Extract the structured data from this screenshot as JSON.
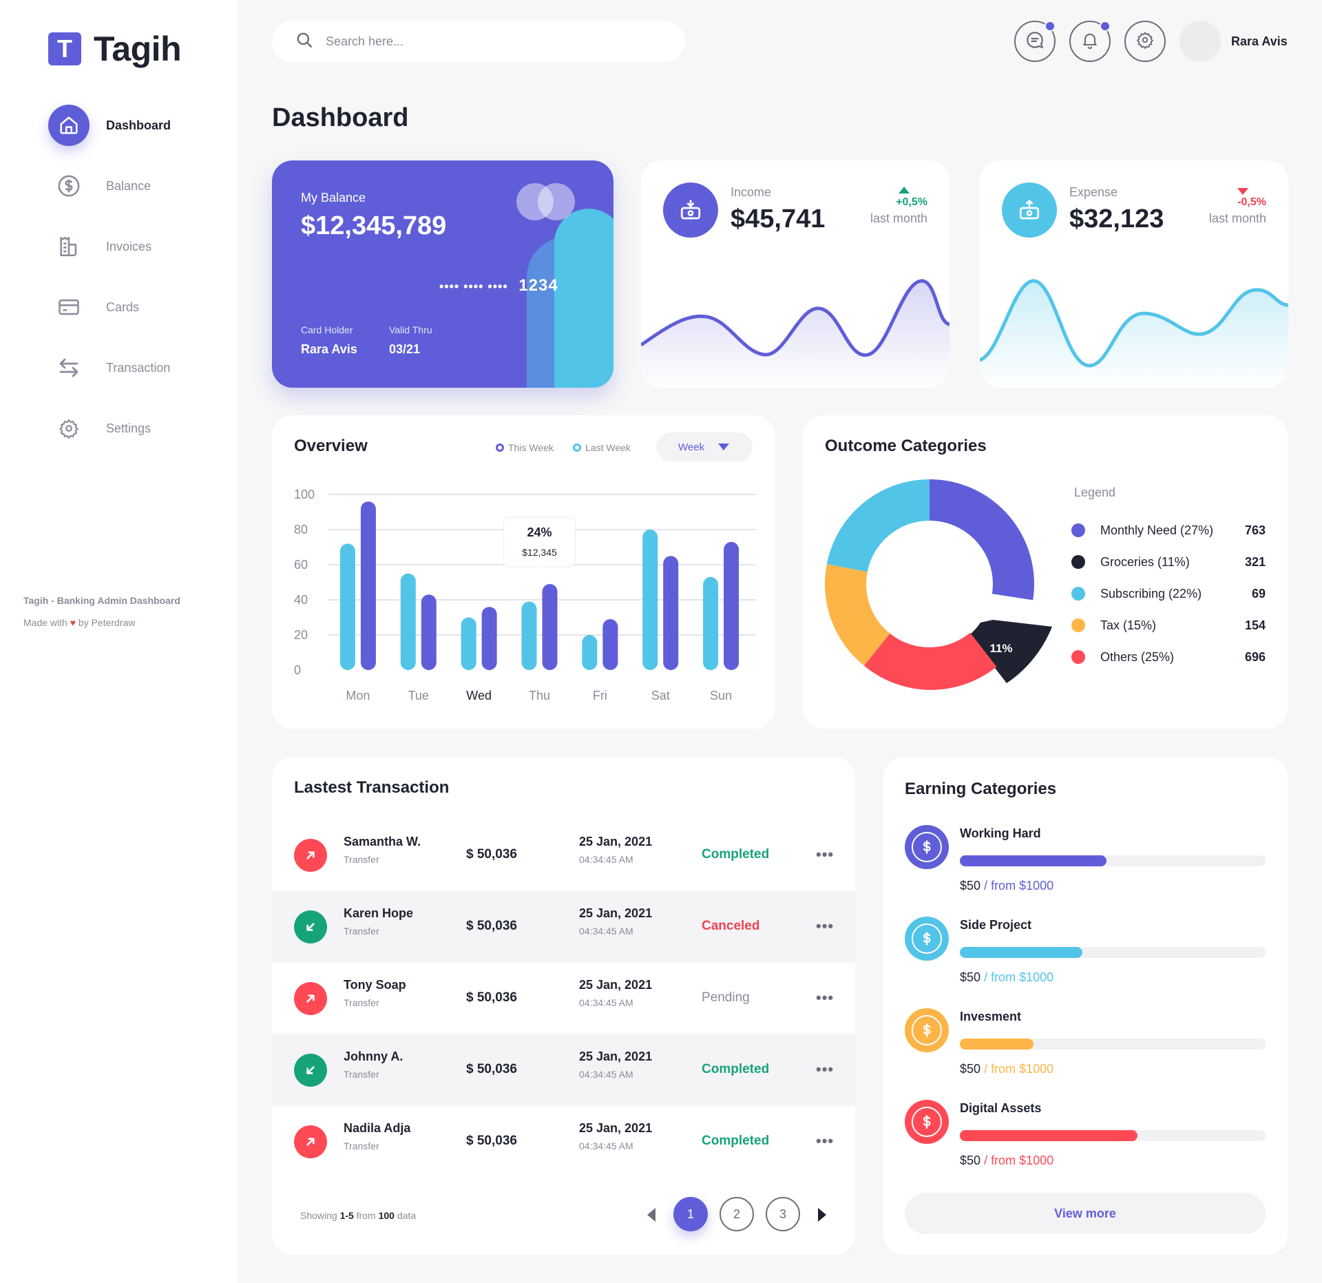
{
  "app": {
    "logo_letter": "T",
    "name": "Tagih"
  },
  "sidebar": {
    "items": [
      {
        "label": "Dashboard",
        "icon": "home-icon",
        "active": true
      },
      {
        "label": "Balance",
        "icon": "dollar-circle-icon"
      },
      {
        "label": "Invoices",
        "icon": "invoice-icon"
      },
      {
        "label": "Cards",
        "icon": "card-icon"
      },
      {
        "label": "Transaction",
        "icon": "transfer-icon"
      },
      {
        "label": "Settings",
        "icon": "gear-icon"
      }
    ],
    "footer_title": "Tagih - Banking Admin Dashboard",
    "footer_made": "Made with",
    "footer_by": "by Peterdraw"
  },
  "header": {
    "search_placeholder": "Search here...",
    "user_name": "Rara Avis"
  },
  "page_title": "Dashboard",
  "balance_card": {
    "label": "My Balance",
    "value": "$12,345,789",
    "masked": "•••• •••• ••••",
    "last4": "1234",
    "holder_label": "Card Holder",
    "holder": "Rara Avis",
    "valid_label": "Valid Thru",
    "valid": "03/21"
  },
  "income": {
    "label": "Income",
    "value": "$45,741",
    "change": "+0,5%",
    "period": "last month"
  },
  "expense": {
    "label": "Expense",
    "value": "$32,123",
    "change": "-0,5%",
    "period": "last month"
  },
  "overview": {
    "title": "Overview",
    "legend_this": "This Week",
    "legend_last": "Last Week",
    "select": "Week",
    "tooltip_pct": "24%",
    "tooltip_val": "$12,345"
  },
  "outcome": {
    "title": "Outcome Categories",
    "legend_title": "Legend",
    "donut_label": "11%",
    "items": [
      {
        "name": "Monthly Need (27%)",
        "value": "763",
        "color": "#5f5ed8"
      },
      {
        "name": "Groceries (11%)",
        "value": "321",
        "color": "#1f2230"
      },
      {
        "name": "Subscribing (22%)",
        "value": "69",
        "color": "#52c4e8"
      },
      {
        "name": "Tax (15%)",
        "value": "154",
        "color": "#fdb548"
      },
      {
        "name": "Others (25%)",
        "value": "696",
        "color": "#ff4a55"
      }
    ]
  },
  "transactions": {
    "title": "Lastest Transaction",
    "rows": [
      {
        "name": "Samantha W.",
        "type": "Transfer",
        "amount": "$ 50,036",
        "date": "25 Jan, 2021",
        "time": "04:34:45 AM",
        "status": "Completed",
        "dir": "out"
      },
      {
        "name": "Karen Hope",
        "type": "Transfer",
        "amount": "$ 50,036",
        "date": "25 Jan, 2021",
        "time": "04:34:45 AM",
        "status": "Canceled",
        "dir": "in"
      },
      {
        "name": "Tony Soap",
        "type": "Transfer",
        "amount": "$ 50,036",
        "date": "25 Jan, 2021",
        "time": "04:34:45 AM",
        "status": "Pending",
        "dir": "out"
      },
      {
        "name": "Johnny A.",
        "type": "Transfer",
        "amount": "$ 50,036",
        "date": "25 Jan, 2021",
        "time": "04:34:45 AM",
        "status": "Completed",
        "dir": "in"
      },
      {
        "name": "Nadila Adja",
        "type": "Transfer",
        "amount": "$ 50,036",
        "date": "25 Jan, 2021",
        "time": "04:34:45 AM",
        "status": "Completed",
        "dir": "out"
      }
    ],
    "more": "•••",
    "showing_pre": "Showing",
    "showing_range": "1-5",
    "showing_from": "from",
    "showing_total": "100",
    "showing_post": "data",
    "pages": [
      "1",
      "2",
      "3"
    ]
  },
  "earning": {
    "title": "Earning Categories",
    "items": [
      {
        "name": "Working Hard",
        "amount": "$50",
        "from": "/ from $1000",
        "progress": 0.48,
        "color": "#5f5ed8"
      },
      {
        "name": "Side Project",
        "amount": "$50",
        "from": "/ from $1000",
        "progress": 0.4,
        "color": "#52c4e8"
      },
      {
        "name": "Invesment",
        "amount": "$50",
        "from": "/ from $1000",
        "progress": 0.24,
        "color": "#fdb548"
      },
      {
        "name": "Digital Assets",
        "amount": "$50",
        "from": "/ from $1000",
        "progress": 0.58,
        "color": "#ff4a55"
      }
    ],
    "view_more": "View more"
  },
  "colors": {
    "primary": "#5f5ed8",
    "cyan": "#52c4e8",
    "green": "#17a37a",
    "red": "#ef4352",
    "dark": "#1f2230",
    "muted": "#8a8c99"
  },
  "chart_data": {
    "type": "bar",
    "title": "Overview",
    "categories": [
      "Mon",
      "Tue",
      "Wed",
      "Thu",
      "Fri",
      "Sat",
      "Sun"
    ],
    "series": [
      {
        "name": "Last Week",
        "values": [
          72,
          55,
          30,
          39,
          20,
          80,
          53
        ],
        "color": "#52c4e8"
      },
      {
        "name": "This Week",
        "values": [
          96,
          43,
          36,
          49,
          29,
          65,
          73
        ],
        "color": "#5f5ed8"
      }
    ],
    "yticks": [
      0,
      20,
      40,
      60,
      80,
      100
    ],
    "ylim": [
      0,
      100
    ],
    "grid": true,
    "legend": "top-right"
  }
}
